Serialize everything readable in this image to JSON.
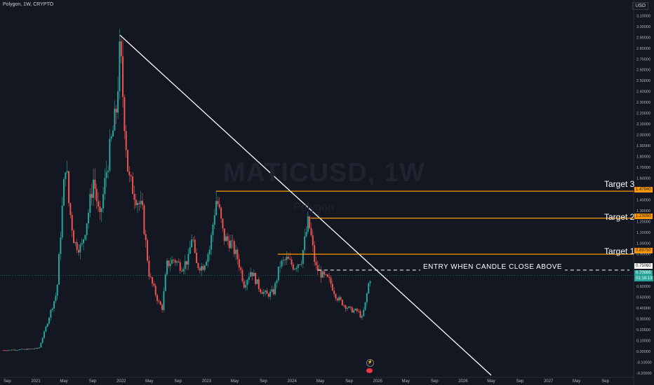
{
  "header": {
    "symbol_text": "Polygon, 1W, CRYPTO",
    "currency": "USD"
  },
  "watermark": {
    "ticker": "MATICUSD, 1W",
    "name": "Polygon"
  },
  "annotations": {
    "target1": "Target 1",
    "target2": "Target 2",
    "target3": "Target 3",
    "entry": "ENTRY WHEN CANDLE CLOSE ABOVE"
  },
  "price_tags": {
    "target3": "1.47940",
    "target2": "1.23050",
    "target1": "0.89750",
    "entry": "0.75060",
    "current": "0.70065",
    "countdown": "01:18:13"
  },
  "colors": {
    "background": "#131722",
    "up_candle": "#26a69a",
    "down_candle": "#ef5350",
    "target_line": "#ff9800",
    "trendline": "#ffffff",
    "axis_text": "#b2b5be"
  },
  "chart_data": {
    "type": "candlestick",
    "title": "MATICUSD, 1W",
    "y_axis": {
      "ticks": [
        "3.10000",
        "3.00000",
        "2.90000",
        "2.80000",
        "2.70000",
        "2.60000",
        "2.50000",
        "2.40000",
        "2.30000",
        "2.20000",
        "2.10000",
        "2.00000",
        "1.90000",
        "1.80000",
        "1.70000",
        "1.60000",
        "1.50000",
        "1.40000",
        "1.30000",
        "1.20000",
        "1.10000",
        "1.00000",
        "0.90000",
        "0.80000",
        "0.70000",
        "0.60000",
        "0.50000",
        "0.40000",
        "0.30000",
        "0.20000",
        "0.10000",
        "0.00000",
        "-0.10000",
        "-0.20000"
      ],
      "range": [
        -0.22,
        3.18
      ]
    },
    "x_axis": {
      "ticks": [
        "Sep",
        "2021",
        "May",
        "Sep",
        "2022",
        "May",
        "Sep",
        "2023",
        "May",
        "Sep",
        "2024",
        "May",
        "Sep",
        "2025",
        "May",
        "Sep",
        "2026",
        "May",
        "Sep",
        "2027",
        "May",
        "Sep"
      ],
      "range": [
        "2020-08-01",
        "2027-12-31"
      ]
    },
    "series": [
      {
        "name": "MATICUSD",
        "close_path": [
          [
            "2020-08-15",
            0.01
          ],
          [
            "2020-10-01",
            0.015
          ],
          [
            "2020-12-01",
            0.02
          ],
          [
            "2021-01-15",
            0.03
          ],
          [
            "2021-02-10",
            0.2
          ],
          [
            "2021-03-10",
            0.4
          ],
          [
            "2021-04-01",
            0.55
          ],
          [
            "2021-04-20",
            1.2
          ],
          [
            "2021-05-10",
            1.8
          ],
          [
            "2021-05-20",
            1.4
          ],
          [
            "2021-06-15",
            1.0
          ],
          [
            "2021-07-15",
            0.95
          ],
          [
            "2021-08-15",
            1.3
          ],
          [
            "2021-09-05",
            1.6
          ],
          [
            "2021-10-01",
            1.2
          ],
          [
            "2021-11-01",
            1.7
          ],
          [
            "2021-12-10",
            2.2
          ],
          [
            "2021-12-27",
            2.8
          ],
          [
            "2022-01-10",
            2.3
          ],
          [
            "2022-02-01",
            1.6
          ],
          [
            "2022-03-01",
            1.45
          ],
          [
            "2022-04-01",
            1.3
          ],
          [
            "2022-05-01",
            0.7
          ],
          [
            "2022-06-10",
            0.45
          ],
          [
            "2022-06-25",
            0.4
          ],
          [
            "2022-07-15",
            0.8
          ],
          [
            "2022-08-15",
            0.85
          ],
          [
            "2022-09-15",
            0.78
          ],
          [
            "2022-10-15",
            0.85
          ],
          [
            "2022-11-01",
            1.1
          ],
          [
            "2022-11-15",
            0.8
          ],
          [
            "2022-12-15",
            0.78
          ],
          [
            "2023-01-15",
            0.95
          ],
          [
            "2023-02-10",
            1.4
          ],
          [
            "2023-02-20",
            1.35
          ],
          [
            "2023-03-15",
            1.05
          ],
          [
            "2023-04-15",
            1.0
          ],
          [
            "2023-05-15",
            0.85
          ],
          [
            "2023-06-10",
            0.62
          ],
          [
            "2023-07-10",
            0.75
          ],
          [
            "2023-08-15",
            0.58
          ],
          [
            "2023-09-15",
            0.52
          ],
          [
            "2023-10-15",
            0.55
          ],
          [
            "2023-11-10",
            0.8
          ],
          [
            "2023-12-10",
            0.85
          ],
          [
            "2024-01-10",
            0.78
          ],
          [
            "2024-02-10",
            0.85
          ],
          [
            "2024-03-10",
            1.2
          ],
          [
            "2024-03-20",
            1.1
          ],
          [
            "2024-04-10",
            0.78
          ],
          [
            "2024-05-10",
            0.7
          ],
          [
            "2024-06-10",
            0.65
          ],
          [
            "2024-07-10",
            0.5
          ],
          [
            "2024-08-10",
            0.43
          ],
          [
            "2024-09-10",
            0.38
          ],
          [
            "2024-10-10",
            0.37
          ],
          [
            "2024-10-25",
            0.3
          ],
          [
            "2024-11-10",
            0.45
          ],
          [
            "2024-11-25",
            0.65
          ],
          [
            "2024-12-05",
            0.7
          ]
        ]
      }
    ],
    "horizontal_lines": [
      {
        "label": "Target 3",
        "value": 1.4794,
        "from": "2023-02-10"
      },
      {
        "label": "Target 2",
        "value": 1.2305,
        "from": "2024-03-20"
      },
      {
        "label": "Target 1",
        "value": 0.8975,
        "from": "2023-11-01"
      },
      {
        "label": "ENTRY WHEN CANDLE CLOSE ABOVE",
        "value": 0.7506,
        "from": "2024-04-20",
        "style": "dashed"
      }
    ],
    "trendline": {
      "start": [
        "2021-12-27",
        2.92
      ],
      "end": [
        "2026-05-01",
        -0.22
      ]
    },
    "current_price": 0.70065,
    "grid": false,
    "legend": "none"
  }
}
